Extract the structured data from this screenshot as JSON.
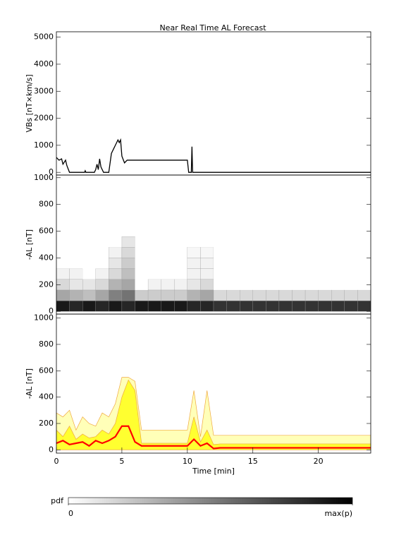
{
  "chart_data": [
    {
      "type": "line",
      "title": "Near Real Time AL Forecast",
      "ylabel": "VBs [nT×km/s]",
      "xlim": [
        0,
        24
      ],
      "ylim": [
        -100,
        5200
      ],
      "yticks": [
        0,
        1000,
        2000,
        3000,
        4000,
        5000
      ],
      "color": "#000000",
      "x": [
        0,
        0.2,
        0.4,
        0.5,
        0.7,
        0.8,
        1,
        2.15,
        2.2,
        2.25,
        2.9,
        3.0,
        3.1,
        3.2,
        3.3,
        3.4,
        3.6,
        4.0,
        4.2,
        4.4,
        4.5,
        4.7,
        4.8,
        4.9,
        5.0,
        5.2,
        5.4,
        10.0,
        10.1,
        10.3,
        10.35,
        10.4,
        24
      ],
      "values": [
        550,
        450,
        500,
        300,
        450,
        250,
        0,
        0,
        60,
        0,
        0,
        100,
        300,
        100,
        500,
        200,
        0,
        0,
        700,
        900,
        1000,
        1200,
        1100,
        1200,
        600,
        350,
        450,
        450,
        0,
        0,
        950,
        0,
        0
      ]
    },
    {
      "type": "heatmap",
      "ylabel": "-AL [nT]",
      "xlim": [
        0,
        24
      ],
      "ylim": [
        -20,
        1020
      ],
      "yticks": [
        0,
        200,
        400,
        600,
        800,
        1000
      ],
      "x_bins": [
        0,
        1,
        2,
        3,
        4,
        5,
        6,
        7,
        8,
        9,
        10,
        11,
        12,
        13,
        14,
        15,
        16,
        17,
        18,
        19,
        20,
        21,
        22,
        23,
        24
      ],
      "y_bins": [
        0,
        80,
        160,
        240,
        320,
        400,
        480,
        560
      ],
      "values": [
        [
          0.9,
          0.35,
          0.15,
          0.05,
          0,
          0,
          0
        ],
        [
          0.85,
          0.3,
          0.1,
          0.05,
          0,
          0,
          0
        ],
        [
          0.9,
          0.25,
          0.1,
          0,
          0,
          0,
          0
        ],
        [
          0.85,
          0.35,
          0.15,
          0.05,
          0,
          0,
          0
        ],
        [
          0.9,
          0.5,
          0.3,
          0.15,
          0.1,
          0.05,
          0
        ],
        [
          0.85,
          0.55,
          0.35,
          0.25,
          0.2,
          0.15,
          0.1
        ],
        [
          0.9,
          0.2,
          0,
          0,
          0,
          0,
          0
        ],
        [
          0.9,
          0.2,
          0.05,
          0,
          0,
          0,
          0
        ],
        [
          0.9,
          0.2,
          0.05,
          0,
          0,
          0,
          0
        ],
        [
          0.9,
          0.2,
          0.05,
          0,
          0,
          0,
          0
        ],
        [
          0.85,
          0.3,
          0.1,
          0.05,
          0.05,
          0.03,
          0
        ],
        [
          0.85,
          0.35,
          0.15,
          0.05,
          0.05,
          0.03,
          0
        ],
        [
          0.8,
          0.15,
          0,
          0,
          0,
          0,
          0
        ],
        [
          0.8,
          0.15,
          0,
          0,
          0,
          0,
          0
        ],
        [
          0.8,
          0.15,
          0,
          0,
          0,
          0,
          0
        ],
        [
          0.8,
          0.15,
          0,
          0,
          0,
          0,
          0
        ],
        [
          0.8,
          0.15,
          0,
          0,
          0,
          0,
          0
        ],
        [
          0.8,
          0.15,
          0,
          0,
          0,
          0,
          0
        ],
        [
          0.8,
          0.15,
          0,
          0,
          0,
          0,
          0
        ],
        [
          0.8,
          0.15,
          0,
          0,
          0,
          0,
          0
        ],
        [
          0.8,
          0.15,
          0,
          0,
          0,
          0,
          0
        ],
        [
          0.8,
          0.15,
          0,
          0,
          0,
          0,
          0
        ],
        [
          0.8,
          0.15,
          0,
          0,
          0,
          0,
          0
        ],
        [
          0.8,
          0.15,
          0,
          0,
          0,
          0,
          0
        ]
      ],
      "colorbar_label": "pdf",
      "colorbar_ticks": [
        0,
        {
          "value": 1,
          "label": "max(p)"
        }
      ]
    },
    {
      "type": "area",
      "ylabel": "-AL [nT]",
      "xlabel": "Time [min]",
      "xlim": [
        0,
        24
      ],
      "ylim": [
        -25,
        1030
      ],
      "xticks": [
        0,
        5,
        10,
        15,
        20
      ],
      "yticks": [
        0,
        200,
        400,
        600,
        800,
        1000
      ],
      "x": [
        0,
        0.5,
        1,
        1.5,
        2,
        2.5,
        3,
        3.5,
        4,
        4.5,
        5,
        5.5,
        6,
        6.5,
        7,
        7.5,
        8,
        8.5,
        9,
        9.5,
        10,
        10.5,
        11,
        11.5,
        12,
        12.5,
        13,
        13.5,
        14,
        14.5,
        15,
        15.5,
        16,
        16.5,
        17,
        17.5,
        18,
        18.5,
        19,
        19.5,
        20,
        20.5,
        21,
        21.5,
        22,
        22.5,
        23,
        23.5,
        24
      ],
      "series": [
        {
          "color": "#ffffb8",
          "edge": "#f0a840",
          "fill": true,
          "values": [
            280,
            250,
            300,
            150,
            250,
            200,
            180,
            280,
            250,
            350,
            550,
            550,
            520,
            150,
            150,
            150,
            150,
            150,
            150,
            150,
            150,
            450,
            100,
            450,
            110,
            110,
            110,
            110,
            110,
            110,
            110,
            110,
            110,
            110,
            110,
            110,
            110,
            110,
            110,
            110,
            110,
            110,
            110,
            110,
            110,
            110,
            110,
            110,
            110
          ]
        },
        {
          "color": "#ffff30",
          "edge": "#f0a840",
          "fill": true,
          "values": [
            150,
            100,
            180,
            80,
            120,
            90,
            100,
            150,
            120,
            200,
            400,
            530,
            450,
            50,
            50,
            50,
            50,
            50,
            50,
            50,
            50,
            250,
            60,
            150,
            40,
            45,
            45,
            45,
            45,
            45,
            45,
            45,
            45,
            45,
            45,
            45,
            45,
            45,
            45,
            45,
            45,
            45,
            45,
            45,
            45,
            45,
            45,
            45,
            45
          ]
        },
        {
          "color": "#ff0000",
          "fill": false,
          "values": [
            50,
            70,
            40,
            50,
            60,
            30,
            70,
            50,
            70,
            100,
            180,
            180,
            60,
            30,
            30,
            30,
            30,
            30,
            30,
            30,
            30,
            80,
            30,
            50,
            10,
            15,
            15,
            15,
            15,
            15,
            15,
            15,
            15,
            15,
            15,
            15,
            15,
            15,
            15,
            15,
            15,
            15,
            15,
            15,
            15,
            15,
            15,
            15,
            15
          ]
        }
      ]
    }
  ]
}
